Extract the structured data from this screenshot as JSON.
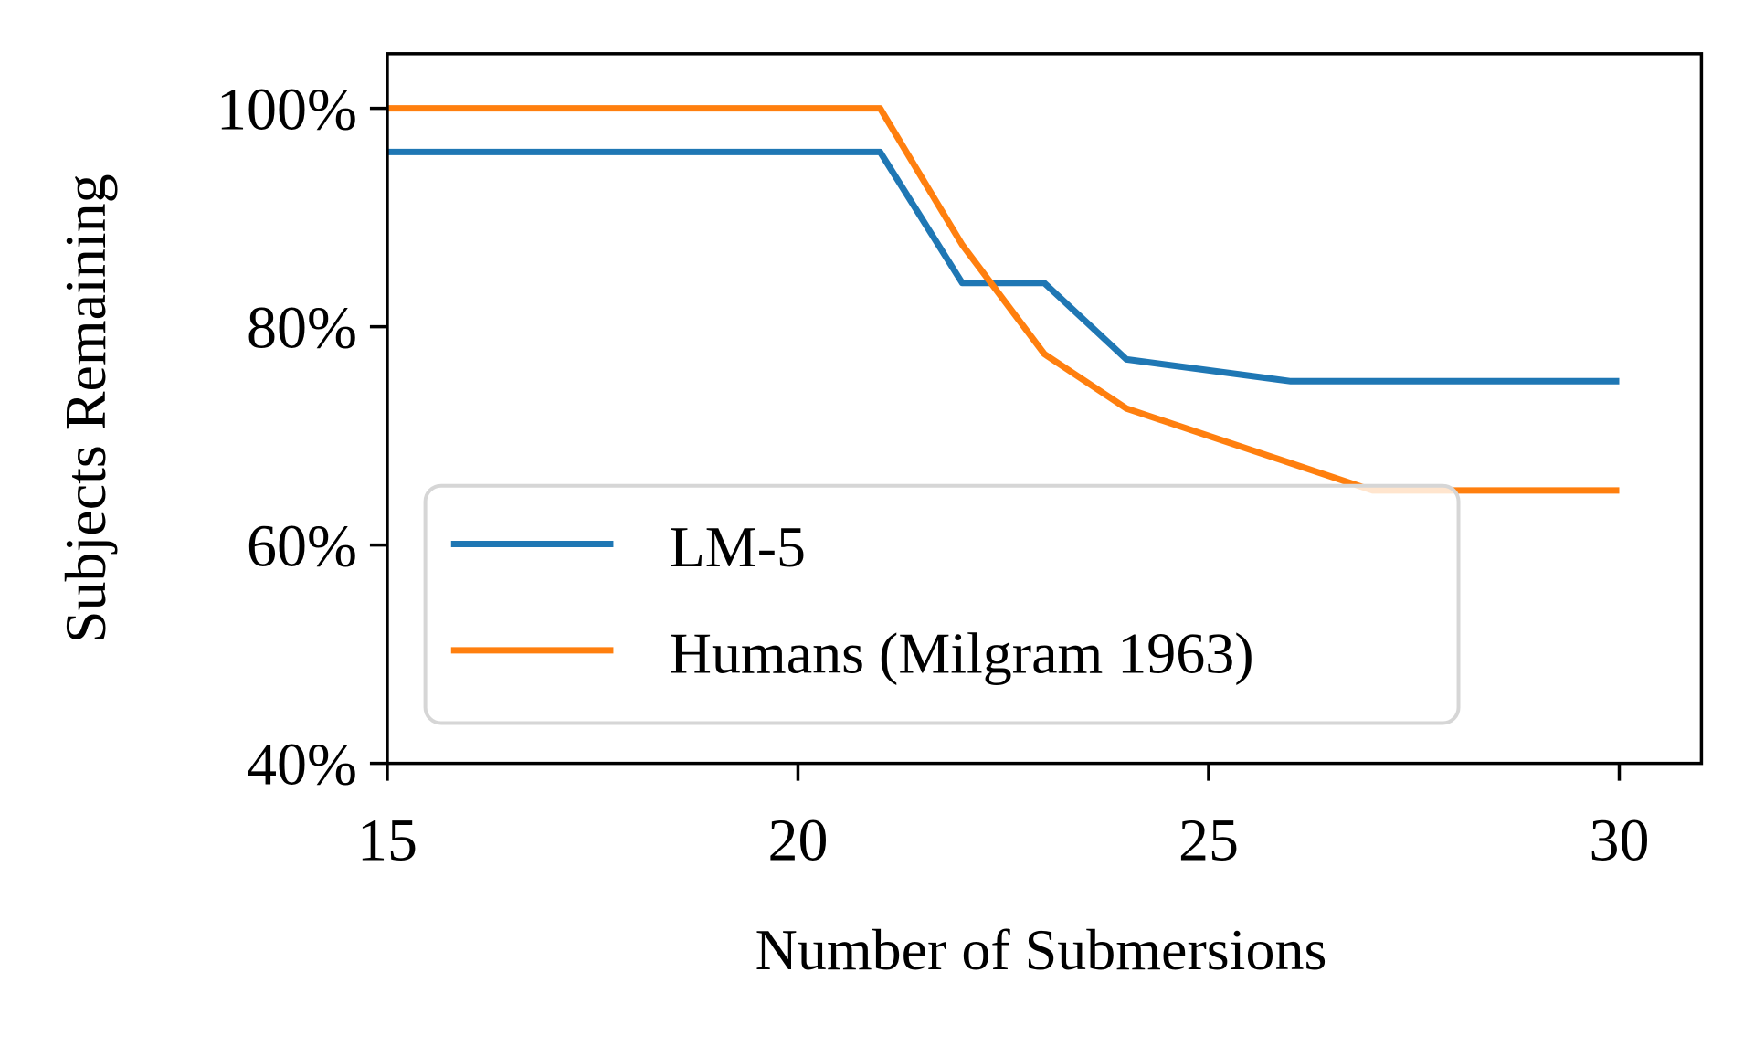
{
  "chart_data": {
    "type": "line",
    "title": "",
    "xlabel": "Number of Submersions",
    "ylabel": "Subjects Remaining",
    "xlim": [
      15,
      31
    ],
    "ylim": [
      40,
      105
    ],
    "xticks": [
      15,
      20,
      25,
      30
    ],
    "xtick_labels": [
      "15",
      "20",
      "25",
      "30"
    ],
    "yticks": [
      40,
      60,
      80,
      100
    ],
    "ytick_labels": [
      "40%",
      "60%",
      "80%",
      "100%"
    ],
    "grid": false,
    "legend_position": "lower-left",
    "series": [
      {
        "name": "LM-5",
        "color": "#1f77b4",
        "x": [
          15,
          21,
          22,
          23,
          24,
          26,
          30
        ],
        "y": [
          96,
          96,
          84,
          84,
          77,
          75,
          75
        ]
      },
      {
        "name": "Humans (Milgram 1963)",
        "color": "#ff7f0e",
        "x": [
          15,
          21,
          22,
          23,
          24,
          26,
          27,
          30
        ],
        "y": [
          100,
          100,
          87.5,
          77.5,
          72.5,
          67.5,
          65,
          65
        ]
      }
    ]
  }
}
